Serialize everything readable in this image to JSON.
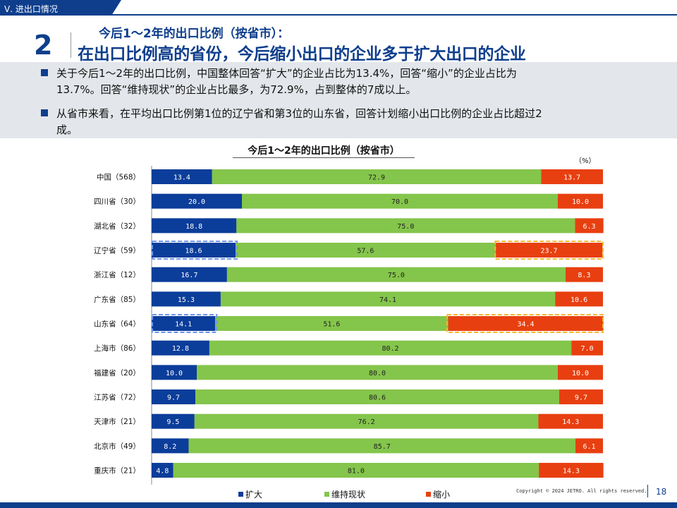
{
  "header": {
    "section_tab": "Ⅴ. 进出口情况",
    "slide_number": "2",
    "title_line1": "今后1～2年的出口比例（按省市）：",
    "title_line2": "在出口比例高的省份，今后缩小出口的企业多于扩大出口的企业"
  },
  "summary": {
    "bullets": [
      {
        "line1": "关于今后1～2年的出口比例，中国整体回答“扩大”的企业占比为13.4%，回答“缩小”的企业占比为",
        "line2": "13.7%。回答“维持现状”的企业占比最多，为72.9%，占到整体的7成以上。"
      },
      {
        "line1": "从省市来看，在平均出口比例第1位的辽宁省和第3位的山东省，回答计划缩小出口比例的企业占比超过2",
        "line2": "成。"
      }
    ]
  },
  "colors": {
    "expand": "#0b3d9a",
    "maintain": "#84c54b",
    "shrink": "#e83f10",
    "brand": "#0e3e8c",
    "highlight_expand": "#6f96e8",
    "highlight_shrink": "#f7b733"
  },
  "chart_data": {
    "type": "bar",
    "orientation": "horizontal",
    "stacked": true,
    "title": "今后1～2年的出口比例（按省市）",
    "unit": "（%）",
    "xlim": [
      0,
      100
    ],
    "categories": [
      "中国（568）",
      "四川省（30）",
      "湖北省（32）",
      "辽宁省（59）",
      "浙江省（12）",
      "广东省（85）",
      "山东省（64）",
      "上海市（86）",
      "福建省（20）",
      "江苏省（72）",
      "天津市（21）",
      "北京市（49）",
      "重庆市（21）"
    ],
    "series": [
      {
        "name": "扩大",
        "values": [
          13.4,
          20.0,
          18.8,
          18.6,
          16.7,
          15.3,
          14.1,
          12.8,
          10.0,
          9.7,
          9.5,
          8.2,
          4.8
        ]
      },
      {
        "name": "维持现状",
        "values": [
          72.9,
          70.0,
          75.0,
          57.6,
          75.0,
          74.1,
          51.6,
          80.2,
          80.0,
          80.6,
          76.2,
          85.7,
          81.0
        ]
      },
      {
        "name": "缩小",
        "values": [
          13.7,
          10.0,
          6.3,
          23.7,
          8.3,
          10.6,
          34.4,
          7.0,
          10.0,
          9.7,
          14.3,
          6.1,
          14.3
        ]
      }
    ],
    "highlighted_categories": [
      "辽宁省（59）",
      "山东省（64）"
    ],
    "legend_position": "bottom"
  },
  "footer": {
    "copyright": "Copyright © 2024 JETRO. All rights reserved.",
    "page_number": "18"
  }
}
